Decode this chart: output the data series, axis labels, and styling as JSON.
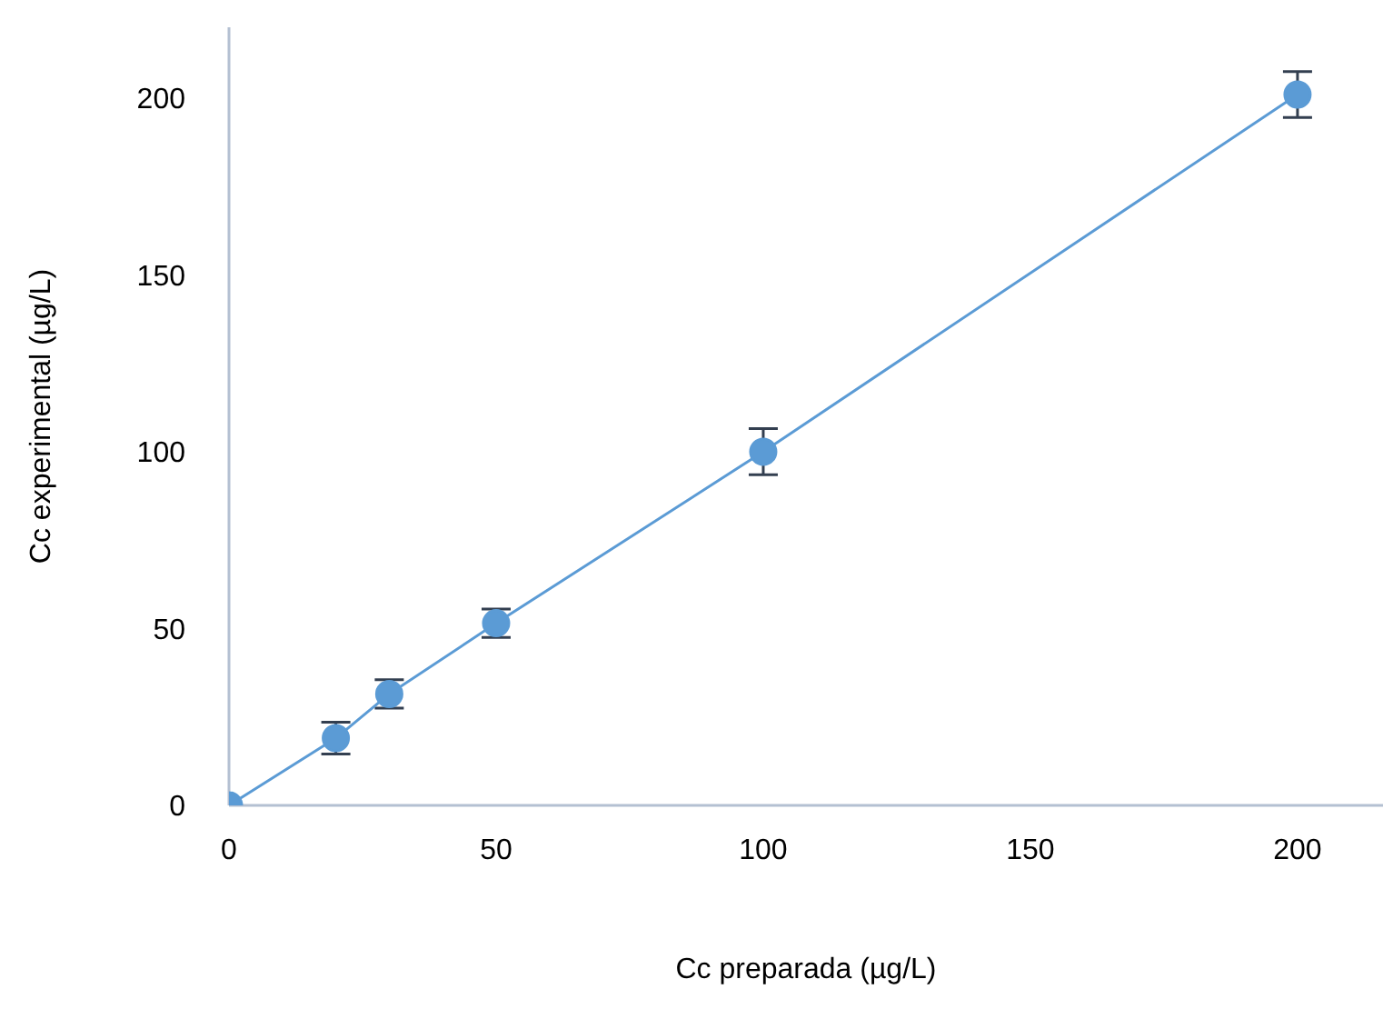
{
  "chart_data": {
    "type": "line",
    "xlabel": "Cc preparada (µg/L)",
    "ylabel": "Cc experimental (µg/L)",
    "x": [
      0,
      20,
      30,
      50,
      100,
      200
    ],
    "series": [
      {
        "color": "#5b9bd5",
        "values": [
          0,
          19,
          31.5,
          51.5,
          100,
          201
        ],
        "errors": [
          null,
          4.5,
          4,
          4,
          6.5,
          6.5
        ]
      }
    ],
    "xlim": [
      0,
      216
    ],
    "ylim": [
      0,
      220
    ],
    "xticks": [
      0,
      50,
      100,
      150,
      200
    ],
    "yticks": [
      0,
      50,
      100,
      150,
      200
    ],
    "grid": false,
    "legend": false,
    "marker": "circle",
    "line_style": "solid"
  }
}
